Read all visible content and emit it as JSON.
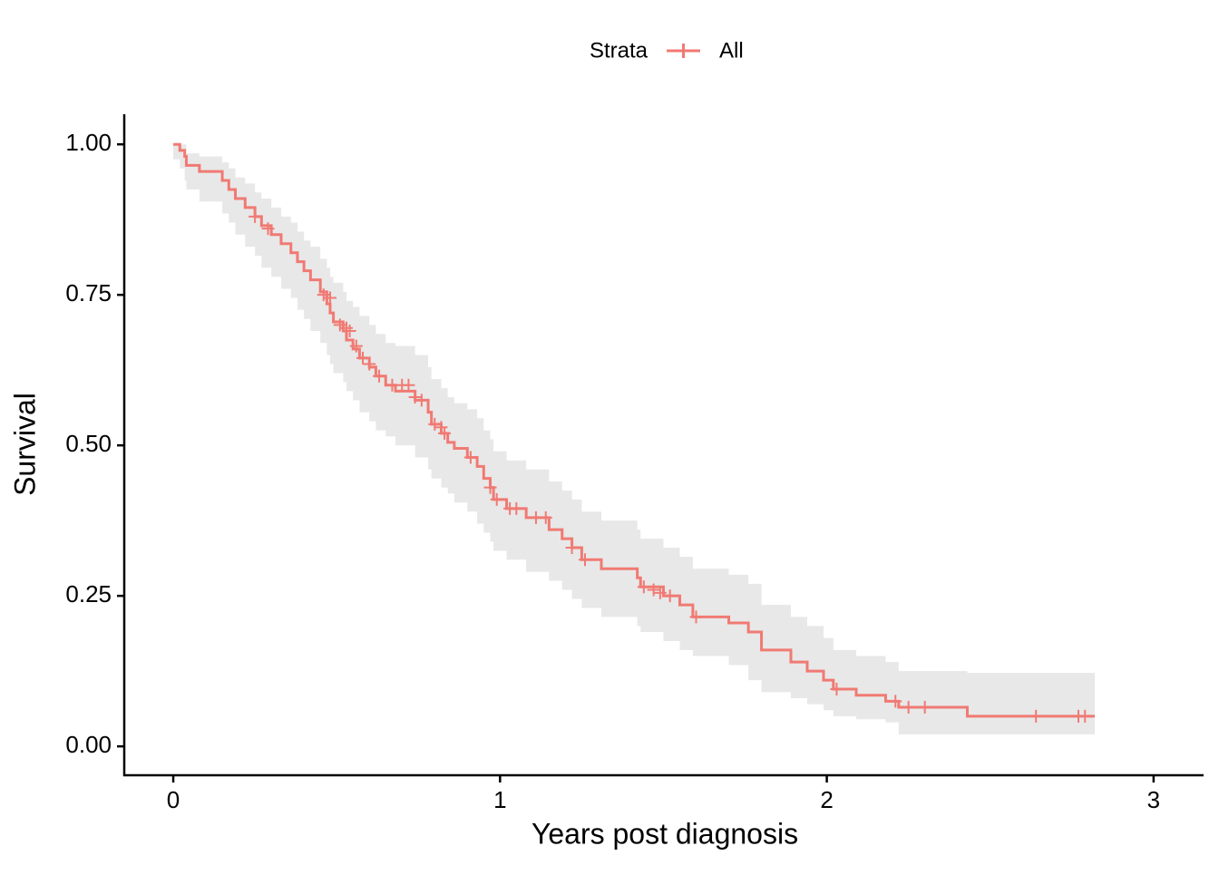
{
  "chart_data": {
    "type": "step",
    "legend_title": "Strata",
    "xlabel": "Years post diagnosis",
    "ylabel": "Survival",
    "xlim": [
      -0.15,
      3.153
    ],
    "ylim": [
      -0.048,
      1.05
    ],
    "xticks": [
      0,
      1,
      2,
      3
    ],
    "yticks": [
      {
        "value": 0,
        "label": "0.00"
      },
      {
        "value": 0.25,
        "label": "0.25"
      },
      {
        "value": 0.5,
        "label": "0.50"
      },
      {
        "value": 0.75,
        "label": "0.75"
      },
      {
        "value": 1,
        "label": "1.00"
      }
    ],
    "grid": false,
    "band_color": "#e8e8e8",
    "series": [
      {
        "name": "All",
        "color": "#f07a73",
        "x": [
          0.0,
          0.02,
          0.035,
          0.04,
          0.08,
          0.15,
          0.17,
          0.19,
          0.22,
          0.25,
          0.27,
          0.3,
          0.33,
          0.36,
          0.38,
          0.4,
          0.42,
          0.45,
          0.47,
          0.48,
          0.49,
          0.52,
          0.53,
          0.55,
          0.57,
          0.6,
          0.62,
          0.65,
          0.68,
          0.74,
          0.78,
          0.79,
          0.82,
          0.84,
          0.86,
          0.9,
          0.93,
          0.95,
          0.97,
          0.98,
          1.02,
          1.08,
          1.15,
          1.19,
          1.22,
          1.25,
          1.31,
          1.42,
          1.43,
          1.5,
          1.55,
          1.59,
          1.7,
          1.76,
          1.8,
          1.89,
          1.94,
          1.99,
          2.02,
          2.09,
          2.18,
          2.22,
          2.43,
          2.82
        ],
        "values": [
          1.0,
          0.99,
          0.98,
          0.965,
          0.955,
          0.94,
          0.925,
          0.91,
          0.895,
          0.88,
          0.865,
          0.85,
          0.835,
          0.82,
          0.805,
          0.79,
          0.775,
          0.755,
          0.735,
          0.72,
          0.705,
          0.69,
          0.675,
          0.66,
          0.645,
          0.63,
          0.615,
          0.6,
          0.59,
          0.575,
          0.555,
          0.535,
          0.52,
          0.505,
          0.495,
          0.48,
          0.465,
          0.445,
          0.43,
          0.41,
          0.395,
          0.38,
          0.36,
          0.345,
          0.33,
          0.31,
          0.295,
          0.28,
          0.265,
          0.25,
          0.235,
          0.215,
          0.205,
          0.19,
          0.16,
          0.14,
          0.125,
          0.11,
          0.095,
          0.085,
          0.075,
          0.065,
          0.05,
          0.05
        ],
        "lower": [
          1.0,
          0.975,
          0.96,
          0.94,
          0.925,
          0.905,
          0.885,
          0.87,
          0.85,
          0.83,
          0.815,
          0.795,
          0.78,
          0.76,
          0.745,
          0.725,
          0.71,
          0.69,
          0.67,
          0.65,
          0.635,
          0.62,
          0.605,
          0.59,
          0.575,
          0.555,
          0.54,
          0.525,
          0.515,
          0.5,
          0.48,
          0.46,
          0.445,
          0.43,
          0.42,
          0.405,
          0.39,
          0.37,
          0.355,
          0.34,
          0.325,
          0.31,
          0.29,
          0.275,
          0.26,
          0.245,
          0.23,
          0.215,
          0.2,
          0.19,
          0.175,
          0.16,
          0.15,
          0.135,
          0.11,
          0.09,
          0.08,
          0.07,
          0.06,
          0.05,
          0.045,
          0.04,
          0.02,
          0.02
        ],
        "upper": [
          1.0,
          1.0,
          1.0,
          0.985,
          0.98,
          0.97,
          0.96,
          0.945,
          0.935,
          0.92,
          0.91,
          0.895,
          0.88,
          0.87,
          0.855,
          0.84,
          0.83,
          0.81,
          0.795,
          0.78,
          0.77,
          0.755,
          0.74,
          0.73,
          0.715,
          0.7,
          0.685,
          0.67,
          0.665,
          0.65,
          0.63,
          0.61,
          0.595,
          0.58,
          0.57,
          0.56,
          0.545,
          0.525,
          0.51,
          0.49,
          0.475,
          0.46,
          0.44,
          0.425,
          0.41,
          0.39,
          0.375,
          0.36,
          0.345,
          0.33,
          0.315,
          0.295,
          0.285,
          0.27,
          0.235,
          0.215,
          0.2,
          0.18,
          0.16,
          0.15,
          0.14,
          0.125,
          0.122,
          0.122
        ],
        "censor_x": [
          0.25,
          0.29,
          0.46,
          0.48,
          0.51,
          0.53,
          0.54,
          0.56,
          0.58,
          0.6,
          0.63,
          0.67,
          0.7,
          0.72,
          0.74,
          0.76,
          0.8,
          0.82,
          0.83,
          0.91,
          0.97,
          0.99,
          1.03,
          1.05,
          1.11,
          1.14,
          1.22,
          1.26,
          1.44,
          1.47,
          1.49,
          1.52,
          1.6,
          2.03,
          2.21,
          2.25,
          2.3,
          2.64,
          2.77,
          2.79
        ],
        "censor_values": [
          0.88,
          0.86,
          0.75,
          0.745,
          0.7,
          0.695,
          0.69,
          0.665,
          0.645,
          0.635,
          0.615,
          0.6,
          0.6,
          0.6,
          0.58,
          0.575,
          0.535,
          0.53,
          0.52,
          0.48,
          0.43,
          0.41,
          0.395,
          0.395,
          0.38,
          0.38,
          0.33,
          0.31,
          0.265,
          0.26,
          0.255,
          0.25,
          0.215,
          0.095,
          0.075,
          0.065,
          0.065,
          0.05,
          0.05,
          0.05
        ]
      }
    ]
  }
}
